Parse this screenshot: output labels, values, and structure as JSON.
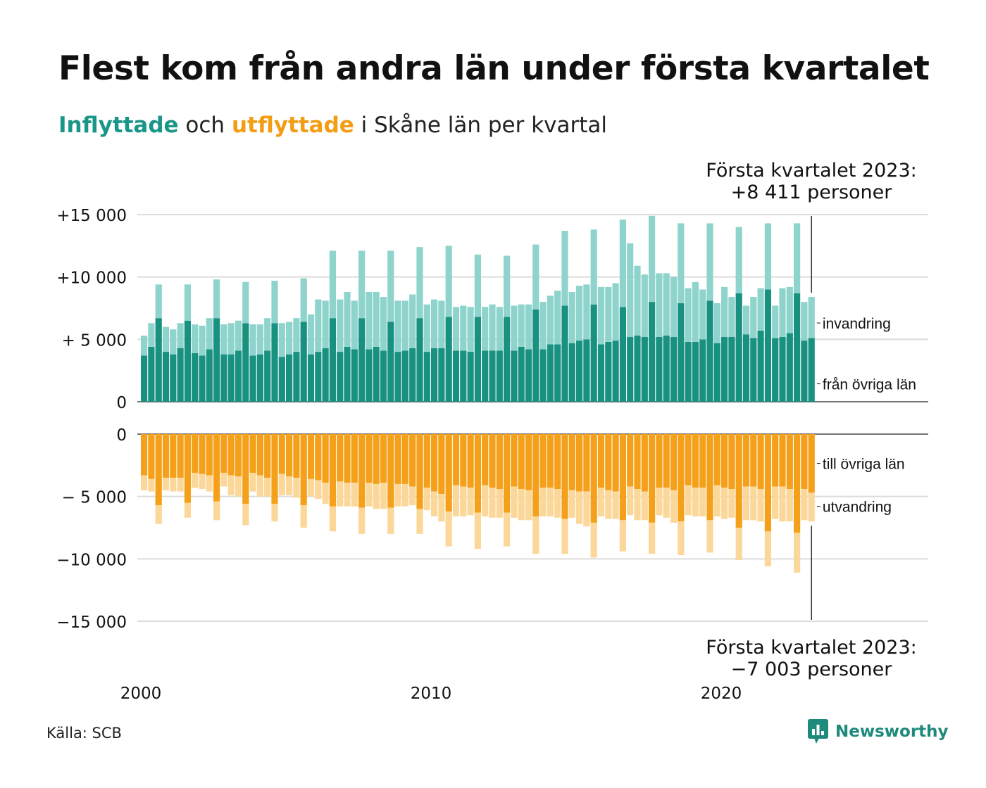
{
  "header": {
    "title": "Flest kom från andra län under första kvartalet",
    "subtitle_in": "Inflyttade",
    "subtitle_mid": " och ",
    "subtitle_out": "utflyttade",
    "subtitle_rest": " i Skåne län per kvartal"
  },
  "footer": {
    "source": "Källa: SCB",
    "brand": "Newsworthy"
  },
  "colors": {
    "in_dark": "#189181",
    "in_light": "#8fd4cc",
    "out_dark": "#f5a01a",
    "out_light": "#fbd89a",
    "grid": "#dcdcdc",
    "brand": "#1e8a7c"
  },
  "chart_data": {
    "type": "bar",
    "stacked": true,
    "x_start": "2000 Q1",
    "x_ticks": [
      "2000",
      "2010",
      "2020"
    ],
    "grid": true,
    "top_panel": {
      "ylim": [
        0,
        15000
      ],
      "y_ticks": [
        "0",
        "+ 5 000",
        "+10 000",
        "+15 000"
      ],
      "series": [
        {
          "name": "från övriga län",
          "values": [
            3700,
            4400,
            6700,
            4000,
            3800,
            4300,
            6500,
            3900,
            3700,
            4200,
            6700,
            3800,
            3800,
            4100,
            6300,
            3700,
            3800,
            4100,
            6300,
            3600,
            3800,
            4000,
            6400,
            3800,
            4000,
            4300,
            6700,
            4000,
            4400,
            4200,
            6700,
            4200,
            4400,
            4100,
            6400,
            4000,
            4100,
            4300,
            6700,
            4000,
            4300,
            4300,
            6800,
            4100,
            4100,
            4000,
            6800,
            4100,
            4100,
            4100,
            6800,
            4100,
            4400,
            4200,
            7400,
            4200,
            4600,
            4600,
            7700,
            4700,
            4900,
            5000,
            7800,
            4600,
            4800,
            4900,
            7600,
            5200,
            5300,
            5200,
            8000,
            5200,
            5300,
            5200,
            7900,
            4800,
            4800,
            5000,
            8100,
            4700,
            5200,
            5200,
            8700,
            5400,
            5100,
            5700,
            9000,
            5100,
            5200,
            5500,
            8700,
            4900,
            5100
          ]
        },
        {
          "name": "invandring",
          "values": [
            1600,
            1900,
            2700,
            2000,
            2000,
            2000,
            2900,
            2300,
            2400,
            2500,
            3100,
            2400,
            2500,
            2400,
            3300,
            2500,
            2400,
            2600,
            3400,
            2700,
            2600,
            2700,
            3500,
            3200,
            4200,
            3800,
            5400,
            4200,
            4400,
            3900,
            5400,
            4600,
            4400,
            4300,
            5700,
            4100,
            4000,
            4300,
            5700,
            3800,
            3900,
            3800,
            5700,
            3500,
            3600,
            3600,
            5000,
            3500,
            3700,
            3500,
            4900,
            3600,
            3400,
            3600,
            5200,
            3800,
            3900,
            4300,
            6000,
            4100,
            4400,
            4400,
            6000,
            4600,
            4400,
            4600,
            7000,
            7500,
            5600,
            5000,
            6900,
            5100,
            5000,
            4800,
            6400,
            4300,
            4800,
            4000,
            6200,
            3200,
            4000,
            3200,
            5300,
            2300,
            3300,
            3400,
            5300,
            2600,
            3900,
            3700,
            5600,
            3100,
            3300
          ]
        }
      ],
      "annotation": [
        "Första kvartalet 2023:",
        "+8 411 personer"
      ]
    },
    "bottom_panel": {
      "ylim": [
        -15000,
        0
      ],
      "y_ticks": [
        "0",
        "− 5 000",
        "−10 000",
        "−15 000"
      ],
      "series": [
        {
          "name": "till övriga län",
          "values": [
            -3300,
            -3600,
            -5700,
            -3500,
            -3500,
            -3500,
            -5500,
            -3100,
            -3200,
            -3300,
            -5400,
            -3100,
            -3300,
            -3400,
            -5600,
            -3100,
            -3300,
            -3500,
            -5600,
            -3200,
            -3400,
            -3500,
            -5700,
            -3600,
            -3700,
            -3900,
            -5800,
            -3800,
            -3900,
            -3900,
            -5900,
            -3900,
            -4000,
            -3900,
            -5900,
            -4000,
            -4000,
            -4200,
            -6000,
            -4300,
            -4600,
            -4800,
            -6200,
            -4100,
            -4200,
            -4300,
            -6300,
            -4100,
            -4300,
            -4400,
            -6300,
            -4200,
            -4400,
            -4500,
            -6600,
            -4300,
            -4300,
            -4400,
            -6800,
            -4500,
            -4600,
            -4600,
            -7100,
            -4300,
            -4500,
            -4600,
            -6900,
            -4200,
            -4400,
            -4600,
            -7100,
            -4300,
            -4300,
            -4500,
            -7000,
            -4100,
            -4300,
            -4300,
            -6900,
            -4100,
            -4300,
            -4400,
            -7500,
            -4200,
            -4200,
            -4400,
            -7800,
            -4200,
            -4200,
            -4400,
            -7900,
            -4400,
            -4700
          ]
        },
        {
          "name": "utvandring",
          "values": [
            -1200,
            -1000,
            -1500,
            -1000,
            -1100,
            -1100,
            -1200,
            -1200,
            -1200,
            -1300,
            -1500,
            -1100,
            -1600,
            -1600,
            -1700,
            -1500,
            -1700,
            -1500,
            -1400,
            -1700,
            -1500,
            -1600,
            -1800,
            -1400,
            -1500,
            -1700,
            -2000,
            -2000,
            -1900,
            -1900,
            -2100,
            -1900,
            -2000,
            -2100,
            -2100,
            -1800,
            -1800,
            -1500,
            -2000,
            -1800,
            -2000,
            -2200,
            -2800,
            -2500,
            -2400,
            -2200,
            -2900,
            -2500,
            -2400,
            -2300,
            -2700,
            -2500,
            -2500,
            -2400,
            -3000,
            -2300,
            -2300,
            -2300,
            -2800,
            -2200,
            -2600,
            -2800,
            -2800,
            -2300,
            -2300,
            -2200,
            -2500,
            -2300,
            -2500,
            -2300,
            -2500,
            -2200,
            -2400,
            -2600,
            -2700,
            -2400,
            -2300,
            -2300,
            -2600,
            -2500,
            -2500,
            -2300,
            -2600,
            -2700,
            -2700,
            -2600,
            -2800,
            -2600,
            -2800,
            -2600,
            -3200,
            -2500,
            -2300
          ]
        }
      ],
      "annotation": [
        "Första kvartalet 2023:",
        "−7 003 personer"
      ]
    }
  }
}
